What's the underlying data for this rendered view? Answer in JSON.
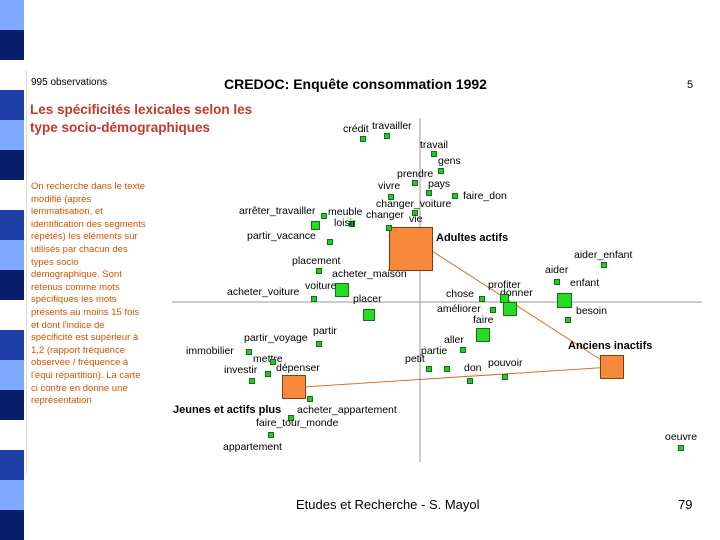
{
  "slide": {
    "observations": "995 observations",
    "header": "CREDOC: Enquête consommation 1992",
    "slide_number": "5",
    "subtitle": "Les spécificités lexicales selon les type socio-démographiques",
    "side_text": "On recherche dans le texte modifié (après lemmatisation, et identification des segments répétés) les éléments sur utilisés par chacun des types socio démographique. Sont retenus comme mots spécifiques les mots présents au moins 15 fois et dont l'indice de spécificité est supérieur à 1,2 (rapport fréquence observée / fréquence à l'équi répartition). La carte ci contre en donne une représentation",
    "footer_center": "Etudes et Recherche - S. Mayol",
    "footer_right": "79"
  },
  "groups": {
    "adultes": "Adultes actifs",
    "anciens": "Anciens inactifs",
    "jeunes": "Jeunes et actifs plus"
  },
  "words": {
    "credit": "crédit",
    "travailler": "travailler",
    "travail": "travail",
    "gens": "gens",
    "prendre": "prendre",
    "pays": "pays",
    "vivre": "vivre",
    "faire_don": "faire_don",
    "arreter_travailler": "arrêter_travailler",
    "meuble": "meuble",
    "changer_voiture": "changer_voiture",
    "changer": "changer",
    "vie": "vie",
    "loisir": "loisir",
    "partir_vacance": "partir_vacance",
    "aider_enfant": "aider_enfant",
    "placement": "placement",
    "aider": "aider",
    "acheter_maison": "acheter_maison",
    "enfant": "enfant",
    "profiter": "profiter",
    "acheter_voiture": "acheter_voiture",
    "voiture": "voiture",
    "chose": "chose",
    "donner": "donner",
    "placer": "placer",
    "ameliorer": "améliorer",
    "besoin": "besoin",
    "faire": "faire",
    "partir": "partir",
    "partir_voyage": "partir_voyage",
    "aller": "aller",
    "immobilier": "immobilier",
    "partie": "partie",
    "mettre": "mettre",
    "petit": "petit",
    "pouvoir": "pouvoir",
    "investir": "investir",
    "depenser": "dépenser",
    "don": "don",
    "acheter_appartement": "acheter_appartement",
    "faire_tour_monde": "faire_tour_monde",
    "appartement": "appartement",
    "oeuvre": "oeuvre"
  },
  "colors": {
    "word_marker": "#22cc22",
    "group_marker": "#f7893a",
    "link_line": "#e07020",
    "axis": "#999999",
    "stripe": [
      "#1f3fa8",
      "#7fa8ff",
      "#0a1f6b",
      "#ffffff"
    ]
  }
}
